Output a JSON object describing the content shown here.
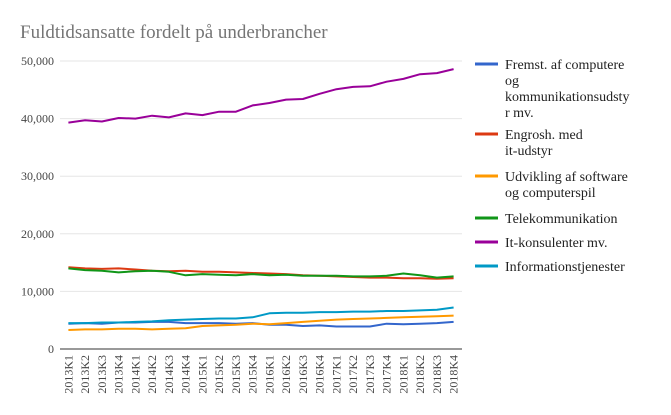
{
  "chart_data": {
    "type": "line",
    "title": "Fuldtidsansatte fordelt på underbrancher",
    "xlabel": "",
    "ylabel": "",
    "ylim": [
      0,
      50000
    ],
    "yticks": [
      0,
      10000,
      20000,
      30000,
      40000,
      50000
    ],
    "ytick_labels": [
      "0",
      "10,000",
      "20,000",
      "30,000",
      "40,000",
      "50,000"
    ],
    "grid": true,
    "legend_position": "right",
    "categories": [
      "2013K1",
      "2013K2",
      "2013K3",
      "2013K4",
      "2014K1",
      "2014K2",
      "2014K3",
      "2014K4",
      "2015K1",
      "2015K2",
      "2015K3",
      "2015K4",
      "2016K1",
      "2016K2",
      "2016K3",
      "2016K4",
      "2017K1",
      "2017K2",
      "2017K3",
      "2017K4",
      "2018K1",
      "2018K2",
      "2018K3",
      "2018K4"
    ],
    "series": [
      {
        "name": "Fremst. af computere og kommunikationsudstyr mv.",
        "color": "#3366cc",
        "values": [
          4400,
          4500,
          4400,
          4600,
          4600,
          4700,
          4700,
          4500,
          4500,
          4500,
          4400,
          4500,
          4200,
          4200,
          4000,
          4100,
          3900,
          3900,
          3900,
          4400,
          4300,
          4400,
          4500,
          4700
        ]
      },
      {
        "name": "Engrosh. med it-udstyr",
        "color": "#dc3912",
        "values": [
          14200,
          14000,
          13900,
          14000,
          13800,
          13600,
          13500,
          13600,
          13400,
          13400,
          13300,
          13200,
          13100,
          13000,
          12800,
          12700,
          12600,
          12500,
          12400,
          12400,
          12300,
          12300,
          12200,
          12300
        ]
      },
      {
        "name": "Udvikling af software og computerspil",
        "color": "#ff9900",
        "values": [
          3300,
          3400,
          3400,
          3500,
          3500,
          3400,
          3500,
          3600,
          4000,
          4100,
          4200,
          4400,
          4300,
          4500,
          4700,
          4900,
          5100,
          5200,
          5300,
          5400,
          5500,
          5600,
          5700,
          5800
        ]
      },
      {
        "name": "Telekommunikation",
        "color": "#109618",
        "values": [
          14000,
          13700,
          13600,
          13300,
          13500,
          13600,
          13400,
          12800,
          13000,
          12900,
          12800,
          13000,
          12800,
          12900,
          12700,
          12700,
          12700,
          12600,
          12600,
          12700,
          13100,
          12800,
          12400,
          12600
        ]
      },
      {
        "name": "It-konsulenter mv.",
        "color": "#990099",
        "values": [
          39300,
          39700,
          39500,
          40100,
          40000,
          40500,
          40200,
          40900,
          40600,
          41200,
          41200,
          42300,
          42700,
          43300,
          43400,
          44300,
          45100,
          45500,
          45600,
          46400,
          46900,
          47700,
          47900,
          48600
        ]
      },
      {
        "name": "Informationstjenester",
        "color": "#0099c6",
        "values": [
          4500,
          4500,
          4600,
          4600,
          4700,
          4800,
          5000,
          5100,
          5200,
          5300,
          5300,
          5500,
          6200,
          6300,
          6300,
          6400,
          6400,
          6500,
          6500,
          6600,
          6600,
          6700,
          6800,
          7200
        ]
      }
    ],
    "legend_lines": [
      [
        "Fremst. af computere",
        "og",
        "kommunikationsudsty",
        "r mv."
      ],
      [
        "Engrosh. med",
        "it-udstyr"
      ],
      [
        "Udvikling af software",
        "og computerspil"
      ],
      [
        "Telekommunikation"
      ],
      [
        "It-konsulenter mv."
      ],
      [
        "Informationstjenester"
      ]
    ]
  }
}
